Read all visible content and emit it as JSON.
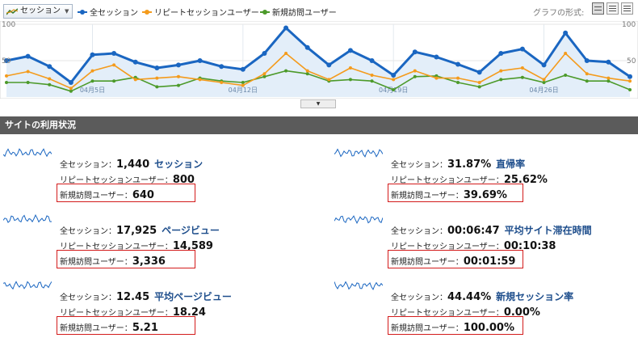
{
  "toolbar": {
    "metric_select_label": "セッション",
    "legend": [
      {
        "label": "全セッション",
        "color": "#1a66c1"
      },
      {
        "label": "リピートセッションユーザー",
        "color": "#f49b1c"
      },
      {
        "label": "新規訪問ユーザー",
        "color": "#4c9a2a"
      }
    ],
    "graph_format_label": "グラフの形式:"
  },
  "chart_data": {
    "type": "line",
    "x": [
      "04月1日",
      "04月2日",
      "04月3日",
      "04月4日",
      "04月5日",
      "04月6日",
      "04月7日",
      "04月8日",
      "04月9日",
      "04月10日",
      "04月11日",
      "04月12日",
      "04月13日",
      "04月14日",
      "04月15日",
      "04月16日",
      "04月17日",
      "04月18日",
      "04月19日",
      "04月20日",
      "04月21日",
      "04月22日",
      "04月23日",
      "04月24日",
      "04月25日",
      "04月26日",
      "04月27日",
      "04月28日",
      "04月29日",
      "04月30日"
    ],
    "x_tick_labels": [
      "04月5日",
      "04月12日",
      "04月19日",
      "04月26日"
    ],
    "y_ticks_left": [
      "100",
      "50"
    ],
    "y_ticks_right": [
      "100",
      "50"
    ],
    "ylim": [
      0,
      100
    ],
    "area_fill_series": "全セッション",
    "series": [
      {
        "name": "全セッション",
        "color": "#1a66c1",
        "values": [
          50,
          56,
          42,
          20,
          58,
          60,
          48,
          40,
          44,
          50,
          42,
          38,
          60,
          95,
          68,
          44,
          64,
          50,
          30,
          62,
          55,
          45,
          34,
          60,
          66,
          44,
          88,
          50,
          48,
          28
        ]
      },
      {
        "name": "リピートセッションユーザー",
        "color": "#f49b1c",
        "values": [
          29,
          35,
          25,
          12,
          36,
          44,
          24,
          26,
          28,
          24,
          20,
          16,
          32,
          60,
          36,
          24,
          40,
          30,
          24,
          36,
          26,
          26,
          20,
          36,
          40,
          24,
          60,
          32,
          26,
          22
        ]
      },
      {
        "name": "新規訪問ユーザー",
        "color": "#4c9a2a",
        "values": [
          20,
          20,
          17,
          8,
          22,
          22,
          27,
          14,
          16,
          26,
          22,
          20,
          28,
          36,
          32,
          22,
          24,
          22,
          10,
          28,
          29,
          20,
          14,
          24,
          27,
          20,
          30,
          22,
          22,
          10
        ]
      }
    ]
  },
  "section": {
    "title": "サイトの利用状況"
  },
  "cards": [
    {
      "rows": [
        {
          "label": "全セッション：",
          "value": "1,440",
          "unit": "セッション"
        },
        {
          "label": "リピートセッションユーザー：",
          "value": "800"
        },
        {
          "label": "新規訪問ユーザー：",
          "value": "640"
        }
      ]
    },
    {
      "rows": [
        {
          "label": "全セッション：",
          "value": "31.87%",
          "unit": "直帰率"
        },
        {
          "label": "リピートセッションユーザー：",
          "value": "25.62%"
        },
        {
          "label": "新規訪問ユーザー：",
          "value": "39.69%"
        }
      ]
    },
    {
      "rows": [
        {
          "label": "全セッション：",
          "value": "17,925",
          "unit": "ページビュー"
        },
        {
          "label": "リピートセッションユーザー：",
          "value": "14,589"
        },
        {
          "label": "新規訪問ユーザー：",
          "value": "3,336"
        }
      ]
    },
    {
      "rows": [
        {
          "label": "全セッション：",
          "value": "00:06:47",
          "unit": "平均サイト滞在時間"
        },
        {
          "label": "リピートセッションユーザー：",
          "value": "00:10:38"
        },
        {
          "label": "新規訪問ユーザー：",
          "value": "00:01:59"
        }
      ]
    },
    {
      "rows": [
        {
          "label": "全セッション：",
          "value": "12.45",
          "unit": "平均ページビュー"
        },
        {
          "label": "リピートセッションユーザー：",
          "value": "18.24"
        },
        {
          "label": "新規訪問ユーザー：",
          "value": "5.21"
        }
      ]
    },
    {
      "rows": [
        {
          "label": "全セッション：",
          "value": "44.44%",
          "unit": "新規セッション率"
        },
        {
          "label": "リピートセッションユーザー：",
          "value": "0.00%"
        },
        {
          "label": "新規訪問ユーザー：",
          "value": "100.00%"
        }
      ]
    }
  ]
}
